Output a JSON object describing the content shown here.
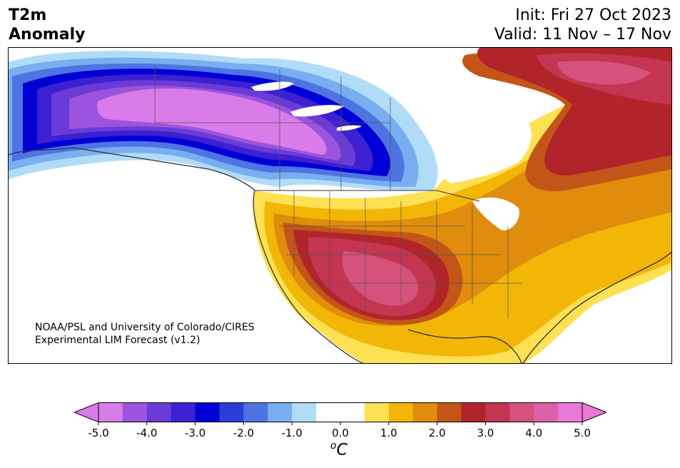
{
  "title": {
    "line1": "T2m",
    "line2": "Anomaly"
  },
  "init": "Init: Fri 27 Oct 2023",
  "valid": "Valid: 11 Nov – 17 Nov",
  "credit": {
    "line1": "NOAA/PSL and University of Colorado/CIRES",
    "line2": "Experimental LIM Forecast (v1.2)"
  },
  "colorbar": {
    "min": -5.0,
    "max": 5.0,
    "step": 0.5,
    "extend": "both",
    "colors": [
      "#d97cea",
      "#9c54de",
      "#6a3bd6",
      "#3c20d2",
      "#0000d6",
      "#2a3ed8",
      "#4e74e4",
      "#79aef0",
      "#b0dcf8",
      "#ffffff",
      "#ffffff",
      "#fee053",
      "#f2b607",
      "#e08c0c",
      "#c45518",
      "#b0242a",
      "#c33550",
      "#d4527c",
      "#db62a8",
      "#ea78d6"
    ],
    "ticks": [
      "-5.0",
      "-4.0",
      "-3.0",
      "-2.0",
      "-1.0",
      "0.0",
      "1.0",
      "2.0",
      "3.0",
      "4.0",
      "5.0"
    ],
    "unit_base": "C",
    "unit_sup": "o"
  }
}
